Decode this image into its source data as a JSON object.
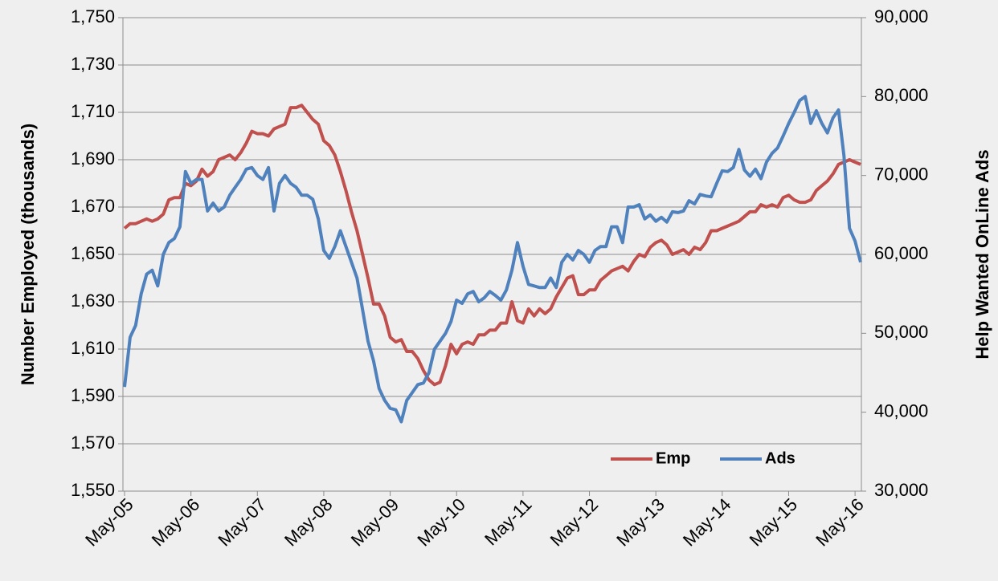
{
  "chart_data": {
    "type": "line",
    "y_label": "Number Employed (thousands)",
    "y2_label": "Help Wanted OnLine Ads",
    "categories": [
      "May-05",
      null,
      null,
      null,
      null,
      null,
      null,
      null,
      null,
      null,
      null,
      null,
      "May-06",
      null,
      null,
      null,
      null,
      null,
      null,
      null,
      null,
      null,
      null,
      null,
      "May-07",
      null,
      null,
      null,
      null,
      null,
      null,
      null,
      null,
      null,
      null,
      null,
      "May-08",
      null,
      null,
      null,
      null,
      null,
      null,
      null,
      null,
      null,
      null,
      null,
      "May-09",
      null,
      null,
      null,
      null,
      null,
      null,
      null,
      null,
      null,
      null,
      null,
      "May-10",
      null,
      null,
      null,
      null,
      null,
      null,
      null,
      null,
      null,
      null,
      null,
      "May-11",
      null,
      null,
      null,
      null,
      null,
      null,
      null,
      null,
      null,
      null,
      null,
      "May-12",
      null,
      null,
      null,
      null,
      null,
      null,
      null,
      null,
      null,
      null,
      null,
      "May-13",
      null,
      null,
      null,
      null,
      null,
      null,
      null,
      null,
      null,
      null,
      null,
      "May-14",
      null,
      null,
      null,
      null,
      null,
      null,
      null,
      null,
      null,
      null,
      null,
      "May-15",
      null,
      null,
      null,
      null,
      null,
      null,
      null,
      null,
      null,
      null,
      null,
      "May-16",
      null
    ],
    "series": [
      {
        "name": "Emp",
        "color": "#c0504d",
        "axis": "y",
        "values": [
          1661,
          1663,
          1663,
          1664,
          1665,
          1664,
          1665,
          1667,
          1673,
          1674,
          1674,
          1680,
          1679,
          1681,
          1686,
          1683,
          1685,
          1690,
          1691,
          1692,
          1690,
          1693,
          1697,
          1702,
          1701,
          1701,
          1700,
          1703,
          1704,
          1705,
          1712,
          1712,
          1713,
          1710,
          1707,
          1705,
          1698,
          1696,
          1692,
          1685,
          1677,
          1668,
          1660,
          1650,
          1640,
          1629,
          1629,
          1624,
          1615,
          1613,
          1614,
          1609,
          1609,
          1606,
          1601,
          1597,
          1595,
          1596,
          1603,
          1612,
          1608,
          1612,
          1613,
          1612,
          1616,
          1616,
          1618,
          1618,
          1621,
          1621,
          1630,
          1622,
          1621,
          1627,
          1624,
          1627,
          1625,
          1627,
          1632,
          1636,
          1640,
          1641,
          1633,
          1633,
          1635,
          1635,
          1639,
          1641,
          1643,
          1644,
          1645,
          1643,
          1647,
          1650,
          1649,
          1653,
          1655,
          1656,
          1654,
          1650,
          1651,
          1652,
          1650,
          1653,
          1652,
          1655,
          1660,
          1660,
          1661,
          1662,
          1663,
          1664,
          1666,
          1668,
          1668,
          1671,
          1670,
          1671,
          1670,
          1674,
          1675,
          1673,
          1672,
          1672,
          1673,
          1677,
          1679,
          1681,
          1684,
          1688,
          1689,
          1690,
          1689,
          1688
        ]
      },
      {
        "name": "Ads",
        "color": "#4f81bd",
        "axis": "y2",
        "values": [
          43200,
          49500,
          51000,
          55000,
          57500,
          58000,
          56000,
          60000,
          61500,
          62000,
          63500,
          70500,
          69000,
          69500,
          69500,
          65500,
          66500,
          65500,
          66000,
          67500,
          68500,
          69500,
          70800,
          71000,
          70000,
          69500,
          71000,
          65500,
          69000,
          70000,
          69000,
          68500,
          67500,
          67500,
          67000,
          64500,
          60500,
          59500,
          61000,
          63000,
          61000,
          59000,
          57000,
          53000,
          49000,
          46500,
          43000,
          41500,
          40500,
          40300,
          38800,
          41500,
          42500,
          43500,
          43700,
          45000,
          48000,
          49000,
          50000,
          51500,
          54200,
          53800,
          55000,
          55300,
          54000,
          54500,
          55300,
          54800,
          54200,
          55500,
          58000,
          61500,
          58500,
          56200,
          56000,
          55800,
          55800,
          57000,
          55800,
          59000,
          60000,
          59300,
          60500,
          60000,
          59000,
          60500,
          61000,
          61000,
          63500,
          63500,
          61500,
          66000,
          66000,
          66300,
          64500,
          65000,
          64200,
          64700,
          64100,
          65400,
          65300,
          65500,
          66800,
          66400,
          67600,
          67400,
          67300,
          69000,
          70600,
          70500,
          71000,
          73300,
          70700,
          69900,
          70800,
          69600,
          71700,
          72800,
          73500,
          75000,
          76600,
          78000,
          79500,
          80000,
          76600,
          78200,
          76600,
          75400,
          77300,
          78300,
          72500,
          63300,
          61700,
          59000
        ]
      }
    ],
    "ylim": [
      1550,
      1750
    ],
    "yticks": [
      {
        "value": 1550,
        "label": "1,550"
      },
      {
        "value": 1570,
        "label": "1,570"
      },
      {
        "value": 1590,
        "label": "1,590"
      },
      {
        "value": 1610,
        "label": "1,610"
      },
      {
        "value": 1630,
        "label": "1,630"
      },
      {
        "value": 1650,
        "label": "1,650"
      },
      {
        "value": 1670,
        "label": "1,670"
      },
      {
        "value": 1690,
        "label": "1,690"
      },
      {
        "value": 1710,
        "label": "1,710"
      },
      {
        "value": 1730,
        "label": "1,730"
      },
      {
        "value": 1750,
        "label": "1,750"
      }
    ],
    "y2lim": [
      30000,
      90000
    ],
    "y2ticks": [
      {
        "value": 30000,
        "label": "30,000"
      },
      {
        "value": 40000,
        "label": "40,000"
      },
      {
        "value": 50000,
        "label": "50,000"
      },
      {
        "value": 60000,
        "label": "60,000"
      },
      {
        "value": 70000,
        "label": "70,000"
      },
      {
        "value": 80000,
        "label": "80,000"
      },
      {
        "value": 90000,
        "label": "90,000"
      }
    ],
    "grid": true,
    "legend": "lower right"
  }
}
